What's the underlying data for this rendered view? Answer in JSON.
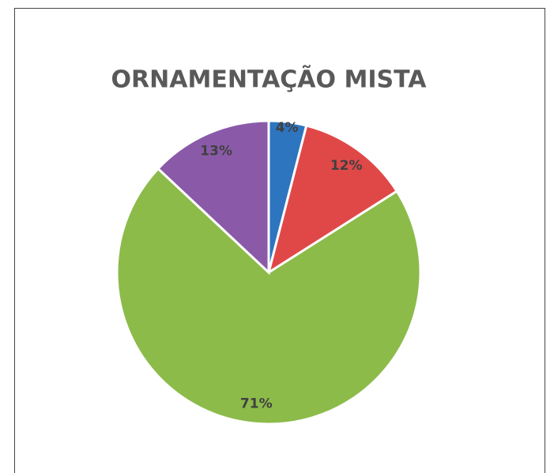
{
  "chart_data": {
    "type": "pie",
    "title": "ORNAMENTAÇÃO MISTA",
    "values": [
      4,
      12,
      71,
      13
    ],
    "value_labels": [
      "4%",
      "12%",
      "71%",
      "13%"
    ],
    "colors": [
      "#2e75c0",
      "#e04848",
      "#8cbb4a",
      "#8a5aa8"
    ]
  }
}
